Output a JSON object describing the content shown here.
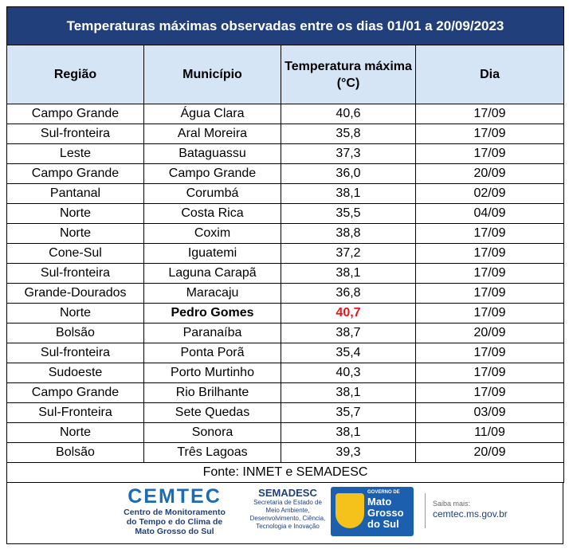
{
  "table": {
    "title": "Temperaturas máximas observadas entre os dias 01/01 a 20/09/2023",
    "headers": [
      "Região",
      "Município",
      "Temperatura máxima (°C)",
      "Dia"
    ],
    "rows": [
      [
        "Campo Grande",
        "Água Clara",
        "40,6",
        "17/09"
      ],
      [
        "Sul-fronteira",
        "Aral Moreira",
        "35,8",
        "17/09"
      ],
      [
        "Leste",
        "Bataguassu",
        "37,3",
        "17/09"
      ],
      [
        "Campo Grande",
        "Campo Grande",
        "36,0",
        "20/09"
      ],
      [
        "Pantanal",
        "Corumbá",
        "38,1",
        "02/09"
      ],
      [
        "Norte",
        "Costa Rica",
        "35,5",
        "04/09"
      ],
      [
        "Norte",
        "Coxim",
        "38,8",
        "17/09"
      ],
      [
        "Cone-Sul",
        "Iguatemi",
        "37,2",
        "17/09"
      ],
      [
        "Sul-fronteira",
        "Laguna Carapã",
        "38,1",
        "17/09"
      ],
      [
        "Grande-Dourados",
        "Maracaju",
        "36,8",
        "17/09"
      ],
      [
        "Norte",
        "Pedro Gomes",
        "40,7",
        "17/09"
      ],
      [
        "Bolsão",
        "Paranaíba",
        "38,7",
        "20/09"
      ],
      [
        "Sul-fronteira",
        "Ponta Porã",
        "35,4",
        "17/09"
      ],
      [
        "Sudoeste",
        "Porto Murtinho",
        "40,3",
        "17/09"
      ],
      [
        "Campo Grande",
        "Rio Brilhante",
        "38,1",
        "17/09"
      ],
      [
        "Sul-Fronteira",
        "Sete Quedas",
        "35,7",
        "03/09"
      ],
      [
        "Norte",
        "Sonora",
        "38,1",
        "11/09"
      ],
      [
        "Bolsão",
        "Três Lagoas",
        "39,3",
        "20/09"
      ]
    ],
    "highlight_row": 10,
    "source": "Fonte: INMET e SEMADESC"
  },
  "footer": {
    "cemtec": {
      "name": "CEMTEC",
      "description": "Centro de Monitoramento do Tempo e do Clima de Mato Grosso do Sul"
    },
    "semadesc": {
      "name": "SEMADESC",
      "description": "Secretaria de Estado de Meio Ambiente, Desenvolvimento, Ciência, Tecnologia e Inovação"
    },
    "governo": {
      "label": "GOVERNO DE",
      "state": "Mato Grosso do Sul"
    },
    "more": {
      "label": "Saiba mais:",
      "url": "cemtec.ms.gov.br"
    }
  }
}
